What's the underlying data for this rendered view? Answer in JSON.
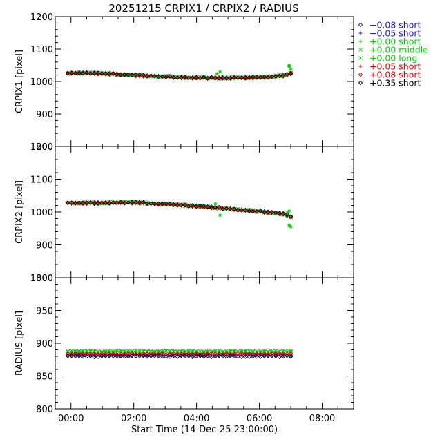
{
  "chart_data": {
    "type": "scatter",
    "title": "20251215 CRPIX1 / CRPIX2 / RADIUS",
    "xlabel": "Start Time (14-Dec-25 23:00:00)",
    "x_unit": "hours since 14-Dec-25 23:00:00",
    "xlim": [
      0.5,
      10.0
    ],
    "x_tick_values": [
      1,
      3,
      5,
      7,
      9
    ],
    "x_tick_labels": [
      "00:00",
      "02:00",
      "04:00",
      "06:00",
      "08:00"
    ],
    "panels": [
      {
        "name": "crpix1",
        "ylabel": "CRPIX1 [pixel]",
        "ylim": [
          800,
          1200
        ],
        "y_ticks": [
          800,
          900,
          1000,
          1100,
          1200
        ],
        "y_tick_labels": [
          "800",
          "900",
          "1000",
          "1100",
          "1200"
        ],
        "trend": [
          [
            0.9,
            1025
          ],
          [
            1.5,
            1027
          ],
          [
            2.5,
            1022
          ],
          [
            3.5,
            1017
          ],
          [
            4.5,
            1013
          ],
          [
            5.5,
            1011
          ],
          [
            6.5,
            1011
          ],
          [
            7.3,
            1014
          ],
          [
            7.85,
            1020
          ],
          [
            8.0,
            1025
          ]
        ],
        "outliers": [
          [
            5.65,
            1024
          ],
          [
            5.75,
            1030
          ],
          [
            7.95,
            1045
          ],
          [
            7.95,
            1050
          ],
          [
            8.0,
            1038
          ]
        ]
      },
      {
        "name": "crpix2",
        "ylabel": "CRPIX2 [pixel]",
        "ylim": [
          800,
          1200
        ],
        "y_ticks": [
          800,
          900,
          1000,
          1100,
          1200
        ],
        "y_tick_labels": [
          "800",
          "900",
          "1000",
          "1100",
          "1200"
        ],
        "trend": [
          [
            0.9,
            1026
          ],
          [
            2.0,
            1028
          ],
          [
            3.0,
            1029
          ],
          [
            4.0,
            1024
          ],
          [
            5.0,
            1018
          ],
          [
            6.0,
            1010
          ],
          [
            7.0,
            1002
          ],
          [
            7.8,
            994
          ],
          [
            8.0,
            985
          ]
        ],
        "outliers": [
          [
            5.6,
            1025
          ],
          [
            5.75,
            990
          ],
          [
            7.95,
            1003
          ],
          [
            7.95,
            960
          ],
          [
            8.0,
            955
          ],
          [
            7.9,
            998
          ]
        ]
      },
      {
        "name": "radius",
        "ylabel": "RADIUS [pixel]",
        "ylim": [
          800,
          1000
        ],
        "y_ticks": [
          800,
          850,
          900,
          950,
          1000
        ],
        "y_tick_labels": [
          "800",
          "850",
          "900",
          "950",
          "1000"
        ],
        "series_levels": {
          "-0.08 short": 882,
          "-0.05 short": 883,
          "+0.00 short": 888,
          "+0.00 middle": 887,
          "+0.00 long": 888,
          "+0.05 short": 884,
          "+0.08 short": 884,
          "+0.35 short": 880
        }
      }
    ],
    "legend": {
      "placement": "right",
      "entries": [
        {
          "symbol": "◇",
          "label": "−0.08 short",
          "color": "#1a1acc"
        },
        {
          "symbol": "+",
          "label": "−0.05 short",
          "color": "#1a1acc"
        },
        {
          "symbol": "+",
          "label": "+0.00 short",
          "color": "#00cc00"
        },
        {
          "symbol": "×",
          "label": "+0.00 middle",
          "color": "#00cc00"
        },
        {
          "symbol": "×",
          "label": "+0.00 long",
          "color": "#00cc00"
        },
        {
          "symbol": "+",
          "label": "+0.05 short",
          "color": "#e00000"
        },
        {
          "symbol": "◇",
          "label": "+0.08 short",
          "color": "#e00000"
        },
        {
          "symbol": "◇",
          "label": "+0.35 short",
          "color": "#000000"
        }
      ]
    }
  }
}
